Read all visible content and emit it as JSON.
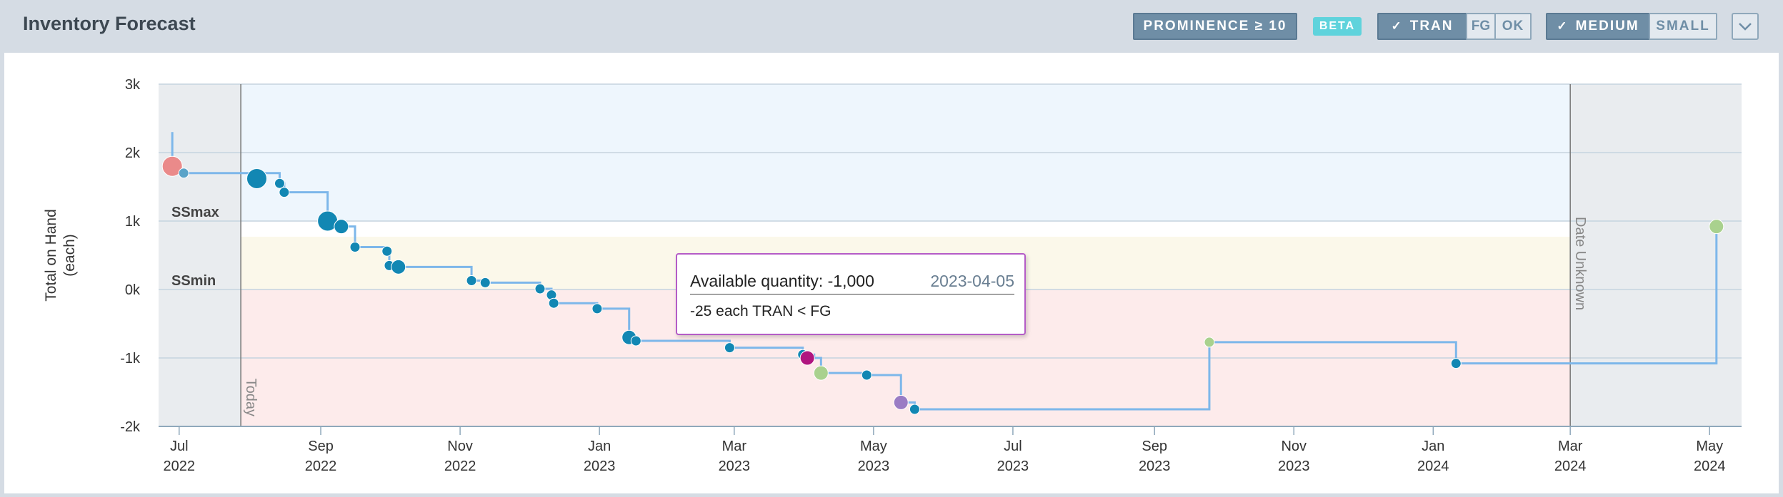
{
  "header": {
    "title": "Inventory Forecast",
    "prominence_label": "PROMINENCE ≥ 10",
    "beta_label": "BETA",
    "type_toggle": {
      "tran": "TRAN",
      "fg": "FG",
      "ok": "OK",
      "selected": "TRAN"
    },
    "size_toggle": {
      "medium": "MEDIUM",
      "small": "SMALL",
      "selected": "MEDIUM"
    },
    "check_glyph": "✓",
    "collapse_icon": "chevron-down-icon"
  },
  "tooltip": {
    "label": "Available quantity: -1,000",
    "date": "2023-04-05",
    "detail": "-25 each TRAN < FG"
  },
  "chart_data": {
    "type": "line",
    "ylabel": "Total on Hand (each)",
    "ylabel_lines": [
      "Total on Hand",
      "(each)"
    ],
    "ylim": [
      -2000,
      3000
    ],
    "yticks": [
      {
        "value": 3000,
        "label": "3k"
      },
      {
        "value": 2000,
        "label": "2k"
      },
      {
        "value": 1000,
        "label": "1k"
      },
      {
        "value": 0,
        "label": "0k"
      },
      {
        "value": -1000,
        "label": "-1k"
      },
      {
        "value": -2000,
        "label": "-2k"
      }
    ],
    "xlim": [
      "2022-06-22",
      "2024-05-15"
    ],
    "xticks": [
      {
        "date": "2022-07-01",
        "month": "Jul",
        "year": "2022"
      },
      {
        "date": "2022-09-01",
        "month": "Sep",
        "year": "2022"
      },
      {
        "date": "2022-11-01",
        "month": "Nov",
        "year": "2022"
      },
      {
        "date": "2023-01-01",
        "month": "Jan",
        "year": "2023"
      },
      {
        "date": "2023-03-01",
        "month": "Mar",
        "year": "2023"
      },
      {
        "date": "2023-05-01",
        "month": "May",
        "year": "2023"
      },
      {
        "date": "2023-07-01",
        "month": "Jul",
        "year": "2023"
      },
      {
        "date": "2023-09-01",
        "month": "Sep",
        "year": "2023"
      },
      {
        "date": "2023-11-01",
        "month": "Nov",
        "year": "2023"
      },
      {
        "date": "2024-01-01",
        "month": "Jan",
        "year": "2024"
      },
      {
        "date": "2024-03-01",
        "month": "Mar",
        "year": "2024"
      },
      {
        "date": "2024-05-01",
        "month": "May",
        "year": "2024"
      }
    ],
    "bands": {
      "ss_max": {
        "value": 1000,
        "label": "SSmax"
      },
      "ss_min": {
        "value": 0,
        "label": "SSmin"
      },
      "overstock_color": "#eef6fd",
      "safety_color": "#fbf8ea",
      "shortage_color": "#fdebeb"
    },
    "markers": [
      {
        "date": "2022-07-28",
        "label": "Today"
      },
      {
        "date": "2024-03-01",
        "label": "Date Unknown"
      }
    ],
    "grid": true,
    "line_color": "#7db7ea",
    "steps": [
      [
        "2022-06-28",
        1700
      ],
      [
        "2022-08-04",
        1700
      ],
      [
        "2022-08-14",
        1550
      ],
      [
        "2022-08-16",
        1420
      ],
      [
        "2022-09-04",
        1000
      ],
      [
        "2022-09-10",
        920
      ],
      [
        "2022-09-16",
        620
      ],
      [
        "2022-09-30",
        560
      ],
      [
        "2022-10-01",
        350
      ],
      [
        "2022-10-05",
        330
      ],
      [
        "2022-11-06",
        130
      ],
      [
        "2022-11-12",
        100
      ],
      [
        "2022-12-06",
        10
      ],
      [
        "2022-12-11",
        -80
      ],
      [
        "2022-12-12",
        -200
      ],
      [
        "2022-12-31",
        -280
      ],
      [
        "2023-01-14",
        -700
      ],
      [
        "2023-01-17",
        -750
      ],
      [
        "2023-02-27",
        -850
      ],
      [
        "2023-03-31",
        -950
      ],
      [
        "2023-04-05",
        -1000
      ],
      [
        "2023-04-08",
        -1220
      ],
      [
        "2023-04-28",
        -1250
      ],
      [
        "2023-05-13",
        -1650
      ],
      [
        "2023-05-19",
        -1750
      ],
      [
        "2023-09-25",
        -770
      ],
      [
        "2024-01-11",
        -1080
      ],
      [
        "2024-05-03",
        -1080
      ],
      [
        "2024-05-04",
        900
      ]
    ],
    "points": [
      {
        "date": "2022-06-28",
        "value": 1800,
        "size": "large",
        "color": "#ea8a8a"
      },
      {
        "date": "2022-07-03",
        "value": 1700,
        "size": "small",
        "color": "#5aa3c8"
      },
      {
        "date": "2022-08-04",
        "value": 1620,
        "size": "large",
        "color": "#1287b3"
      },
      {
        "date": "2022-08-14",
        "value": 1550,
        "size": "small",
        "color": "#1287b3"
      },
      {
        "date": "2022-08-16",
        "value": 1420,
        "size": "small",
        "color": "#1287b3"
      },
      {
        "date": "2022-09-04",
        "value": 1000,
        "size": "large",
        "color": "#1287b3"
      },
      {
        "date": "2022-09-10",
        "value": 920,
        "size": "medium",
        "color": "#1287b3"
      },
      {
        "date": "2022-09-16",
        "value": 620,
        "size": "small",
        "color": "#1287b3"
      },
      {
        "date": "2022-09-30",
        "value": 560,
        "size": "small",
        "color": "#1287b3"
      },
      {
        "date": "2022-10-01",
        "value": 350,
        "size": "small",
        "color": "#1287b3"
      },
      {
        "date": "2022-10-05",
        "value": 330,
        "size": "medium",
        "color": "#1287b3"
      },
      {
        "date": "2022-11-06",
        "value": 130,
        "size": "small",
        "color": "#1287b3"
      },
      {
        "date": "2022-11-12",
        "value": 100,
        "size": "small",
        "color": "#1287b3"
      },
      {
        "date": "2022-12-06",
        "value": 10,
        "size": "small",
        "color": "#1287b3"
      },
      {
        "date": "2022-12-11",
        "value": -80,
        "size": "small",
        "color": "#1287b3"
      },
      {
        "date": "2022-12-12",
        "value": -200,
        "size": "small",
        "color": "#1287b3"
      },
      {
        "date": "2022-12-31",
        "value": -280,
        "size": "small",
        "color": "#1287b3"
      },
      {
        "date": "2023-01-14",
        "value": -700,
        "size": "medium",
        "color": "#1287b3"
      },
      {
        "date": "2023-01-17",
        "value": -750,
        "size": "small",
        "color": "#1287b3"
      },
      {
        "date": "2023-02-27",
        "value": -850,
        "size": "small",
        "color": "#1287b3"
      },
      {
        "date": "2023-03-31",
        "value": -950,
        "size": "small",
        "color": "#1287b3"
      },
      {
        "date": "2023-04-02",
        "value": -1000,
        "size": "medium",
        "color": "#b0157f"
      },
      {
        "date": "2023-04-08",
        "value": -1220,
        "size": "medium",
        "color": "#a9d18e"
      },
      {
        "date": "2023-04-28",
        "value": -1250,
        "size": "small",
        "color": "#1287b3"
      },
      {
        "date": "2023-05-13",
        "value": -1650,
        "size": "medium",
        "color": "#9a7cc4"
      },
      {
        "date": "2023-05-19",
        "value": -1750,
        "size": "small",
        "color": "#1287b3"
      },
      {
        "date": "2023-09-25",
        "value": -770,
        "size": "small",
        "color": "#a9d18e"
      },
      {
        "date": "2024-01-11",
        "value": -1080,
        "size": "small",
        "color": "#1287b3"
      },
      {
        "date": "2024-05-04",
        "value": 920,
        "size": "medium",
        "color": "#a9d18e"
      }
    ],
    "spike": {
      "date": "2022-06-28",
      "value": 2300
    }
  }
}
